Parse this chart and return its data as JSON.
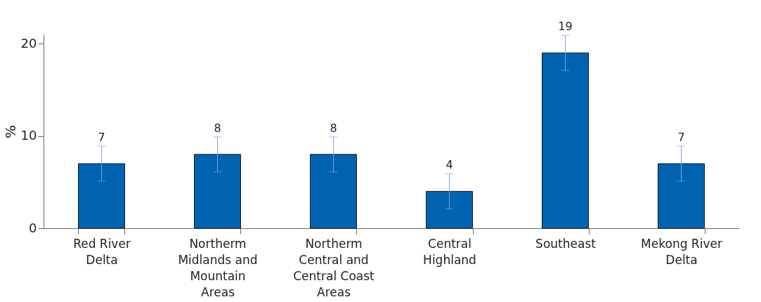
{
  "chart_data": {
    "type": "bar",
    "ylabel": "%",
    "categories": [
      "Red River Delta",
      "Northerm Midlands and Mountain Areas",
      "Northerm Central and Central Coast Areas",
      "Central Highland",
      "Southeast",
      "Mekong River Delta"
    ],
    "values": [
      7,
      8,
      8,
      4,
      19,
      7
    ],
    "errors": [
      1.9,
      1.9,
      1.9,
      1.9,
      1.9,
      1.9
    ],
    "color": "#0063b1",
    "ylim": [
      0,
      21
    ],
    "yticks": [
      0,
      10,
      20
    ],
    "grid": false,
    "data_labels": true
  }
}
